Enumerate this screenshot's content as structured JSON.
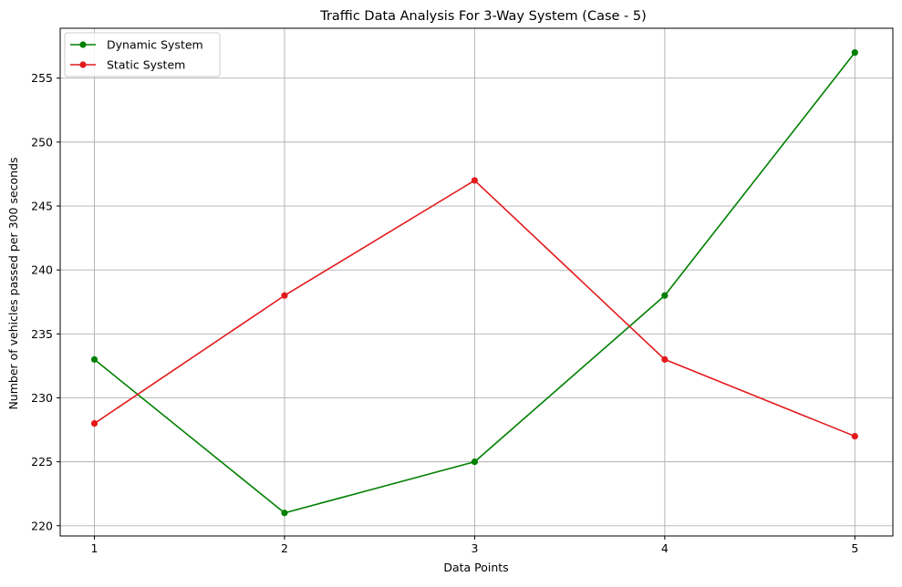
{
  "chart_data": {
    "type": "line",
    "title": "Traffic Data Analysis For 3-Way System (Case - 5)",
    "xlabel": "Data Points",
    "ylabel": "Number of vehicles passed per 300 seconds",
    "x": [
      1,
      2,
      3,
      4,
      5
    ],
    "x_ticks": [
      "1",
      "2",
      "3",
      "4",
      "5"
    ],
    "y_ticks": [
      "220",
      "225",
      "230",
      "235",
      "240",
      "245",
      "250",
      "255"
    ],
    "xlim": [
      0.82,
      5.2
    ],
    "ylim": [
      219.2,
      258.9
    ],
    "grid": true,
    "legend_position": "top-left",
    "series": [
      {
        "name": "Dynamic System",
        "color": "#008000",
        "marker": "circle",
        "values": [
          233,
          221,
          225,
          238,
          257
        ]
      },
      {
        "name": "Static System",
        "color": "#e31a1c",
        "marker": "circle",
        "values": [
          228,
          238,
          247,
          233,
          227
        ]
      }
    ]
  }
}
